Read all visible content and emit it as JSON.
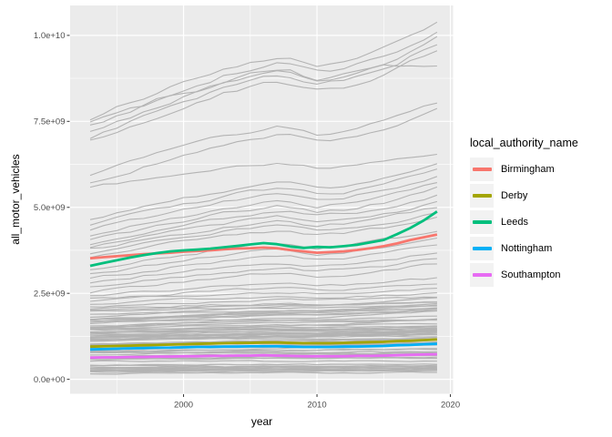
{
  "chart_data": {
    "type": "line",
    "title": "",
    "xlabel": "year",
    "ylabel": "all_motor_vehicles",
    "xlim": [
      1991.5,
      2020.2
    ],
    "ylim": [
      -420000000,
      10870000000
    ],
    "x_ticks": [
      {
        "value": 2000,
        "label": "2000"
      },
      {
        "value": 2010,
        "label": "2010"
      },
      {
        "value": 2020,
        "label": "2020"
      }
    ],
    "x_minor_ticks": [
      1995,
      2005,
      2015
    ],
    "y_ticks": [
      {
        "value": 0,
        "label": "0.0e+00"
      },
      {
        "value": 2500000000,
        "label": "2.5e+09"
      },
      {
        "value": 5000000000,
        "label": "5.0e+09"
      },
      {
        "value": 7500000000,
        "label": "7.5e+09"
      },
      {
        "value": 10000000000,
        "label": "1.0e+10"
      }
    ],
    "y_minor_ticks": [
      1250000000,
      3750000000,
      6250000000,
      8750000000
    ],
    "grid": true,
    "legend_position": "right",
    "value_scale": 1000000000,
    "years": [
      1993,
      1994,
      1995,
      1996,
      1997,
      1998,
      1999,
      2000,
      2001,
      2002,
      2003,
      2004,
      2005,
      2006,
      2007,
      2008,
      2009,
      2010,
      2011,
      2012,
      2013,
      2014,
      2015,
      2016,
      2017,
      2018,
      2019
    ],
    "series": [
      {
        "name": "Birmingham",
        "color": "#F8766D",
        "values": [
          3.52,
          3.55,
          3.58,
          3.61,
          3.64,
          3.66,
          3.68,
          3.71,
          3.73,
          3.75,
          3.78,
          3.8,
          3.81,
          3.83,
          3.81,
          3.76,
          3.72,
          3.68,
          3.7,
          3.72,
          3.76,
          3.81,
          3.87,
          3.95,
          4.05,
          4.13,
          4.21
        ]
      },
      {
        "name": "Derby",
        "color": "#A3A500",
        "values": [
          0.95,
          0.96,
          0.97,
          0.98,
          0.99,
          1.0,
          1.01,
          1.02,
          1.03,
          1.04,
          1.05,
          1.06,
          1.06,
          1.07,
          1.07,
          1.06,
          1.05,
          1.05,
          1.05,
          1.06,
          1.07,
          1.08,
          1.09,
          1.11,
          1.12,
          1.14,
          1.16
        ]
      },
      {
        "name": "Leeds",
        "color": "#00BF7D",
        "values": [
          3.3,
          3.38,
          3.46,
          3.54,
          3.61,
          3.67,
          3.72,
          3.75,
          3.77,
          3.8,
          3.84,
          3.88,
          3.92,
          3.96,
          3.93,
          3.86,
          3.82,
          3.85,
          3.84,
          3.87,
          3.91,
          3.98,
          4.05,
          4.22,
          4.4,
          4.62,
          4.88
        ]
      },
      {
        "name": "Nottingham",
        "color": "#00B0F6",
        "values": [
          0.87,
          0.88,
          0.89,
          0.9,
          0.91,
          0.92,
          0.92,
          0.93,
          0.94,
          0.94,
          0.95,
          0.95,
          0.96,
          0.96,
          0.96,
          0.95,
          0.94,
          0.94,
          0.94,
          0.95,
          0.95,
          0.96,
          0.97,
          0.99,
          1.0,
          1.02,
          1.03
        ]
      },
      {
        "name": "Southampton",
        "color": "#E76BF3",
        "values": [
          0.63,
          0.64,
          0.64,
          0.65,
          0.65,
          0.66,
          0.66,
          0.67,
          0.67,
          0.68,
          0.68,
          0.69,
          0.69,
          0.7,
          0.69,
          0.68,
          0.67,
          0.67,
          0.67,
          0.67,
          0.68,
          0.68,
          0.69,
          0.7,
          0.71,
          0.72,
          0.73
        ]
      }
    ],
    "background": {
      "description": "other local authorities (unlabelled grey lines)",
      "color": "#b3b3b3",
      "shape": [
        0,
        0.055,
        0.11,
        0.165,
        0.22,
        0.275,
        0.33,
        0.375,
        0.42,
        0.47,
        0.52,
        0.56,
        0.6,
        0.63,
        0.66,
        0.645,
        0.6,
        0.56,
        0.58,
        0.6,
        0.64,
        0.69,
        0.74,
        0.8,
        0.87,
        0.935,
        1.0
      ],
      "clusters": [
        {
          "s": 7.6,
          "e": 10.35
        },
        {
          "s": 7.35,
          "e": 10.15
        },
        {
          "s": 7.18,
          "e": 9.95
        },
        {
          "s": 7.05,
          "e": 9.75
        },
        {
          "s": 6.92,
          "e": 9.55
        },
        {
          "s": 7.45,
          "e": 9.1,
          "flat_from": 2015
        },
        {
          "s": 5.95,
          "e": 8.05
        },
        {
          "s": 5.7,
          "e": 7.85
        },
        {
          "s": 5.58,
          "e": 6.6
        },
        {
          "s": 4.65,
          "e": 6.25
        },
        {
          "s": 4.5,
          "e": 6.1
        },
        {
          "s": 4.34,
          "e": 5.92
        },
        {
          "s": 4.18,
          "e": 5.72
        },
        {
          "s": 4.02,
          "e": 5.55
        },
        {
          "s": 3.95,
          "e": 5.35
        },
        {
          "s": 3.86,
          "e": 5.15
        },
        {
          "s": 3.78,
          "e": 5.0
        },
        {
          "s": 3.68,
          "e": 4.85
        },
        {
          "s": 3.58,
          "e": 4.68
        },
        {
          "s": 3.2,
          "e": 4.35
        },
        {
          "s": 3.05,
          "e": 4.12
        },
        {
          "s": 2.92,
          "e": 3.92
        },
        {
          "s": 2.8,
          "e": 3.7
        },
        {
          "s": 2.66,
          "e": 3.52
        },
        {
          "s": 2.54,
          "e": 3.36
        },
        {
          "s": 2.42,
          "e": 2.95
        },
        {
          "s": 2.34,
          "e": 2.8
        },
        {
          "s": 2.27,
          "e": 2.66
        },
        {
          "s": 2.2,
          "e": 2.52
        },
        {
          "s": 2.12,
          "e": 2.4
        },
        {
          "s": 2.05,
          "e": 2.28
        }
      ],
      "mass": {
        "count": 66,
        "seed": 11,
        "start_min": 0.15,
        "start_max": 2.05,
        "growth_min": 0.95,
        "growth_max": 1.33
      }
    }
  },
  "legend": {
    "title": "local_authority_name",
    "entries": [
      {
        "label": "Birmingham",
        "color": "#F8766D"
      },
      {
        "label": "Derby",
        "color": "#A3A500"
      },
      {
        "label": "Leeds",
        "color": "#00BF7D"
      },
      {
        "label": "Nottingham",
        "color": "#00B0F6"
      },
      {
        "label": "Southampton",
        "color": "#E76BF3"
      }
    ]
  },
  "colors": {
    "panel_background": "#EBEBEB",
    "grid": "#FFFFFF",
    "background_line": "#b3b3b3",
    "axis_text": "#4d4d4d",
    "tick_mark": "#333333",
    "legend_key_background": "#f2f2f2"
  }
}
